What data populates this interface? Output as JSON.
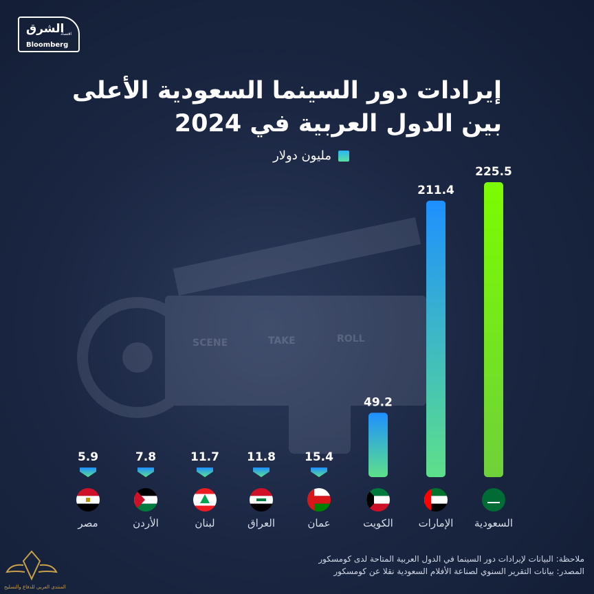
{
  "brand": {
    "logo_main": "الشرق",
    "logo_sub": "اقتصاد",
    "logo_partner": "Bloomberg",
    "watermark": "المنتدى العربي للدفاع والتسليح"
  },
  "title_lines": [
    "إيرادات دور السينما السعودية الأعلى",
    "بين الدول العربية في 2024"
  ],
  "legend": {
    "label": "مليون دولار"
  },
  "chart_data": {
    "type": "bar",
    "categories": [
      "السعودية",
      "الإمارات",
      "الكويت",
      "عمان",
      "العراق",
      "لبنان",
      "الأردن",
      "مصر"
    ],
    "values": [
      225.5,
      211.4,
      49.2,
      15.4,
      11.8,
      11.7,
      7.8,
      5.9
    ],
    "value_labels": [
      "225.5",
      "211.4",
      "49.2",
      "15.4",
      "11.8",
      "11.7",
      "7.8",
      "5.9"
    ],
    "flags": [
      "saudi-arabia-flag-icon",
      "uae-flag-icon",
      "kuwait-flag-icon",
      "oman-flag-icon",
      "iraq-flag-icon",
      "lebanon-flag-icon",
      "jordan-flag-icon",
      "egypt-flag-icon"
    ],
    "ylabel": "مليون دولار",
    "ylim": [
      0,
      225.5
    ],
    "grid": false,
    "legend_position": "top",
    "colors": {
      "top": "#1e90ff",
      "bottom": "#5de08a",
      "leader": "#7cfc00"
    }
  },
  "footer": {
    "note": "ملاحظة: البيانات لإيرادات دور السينما في الدول العربية المتاحة لدى كومسكور",
    "source": "المصدر: بيانات التقرير السنوي لصناعة الأفلام السعودية نقلا عن كومسكور"
  }
}
